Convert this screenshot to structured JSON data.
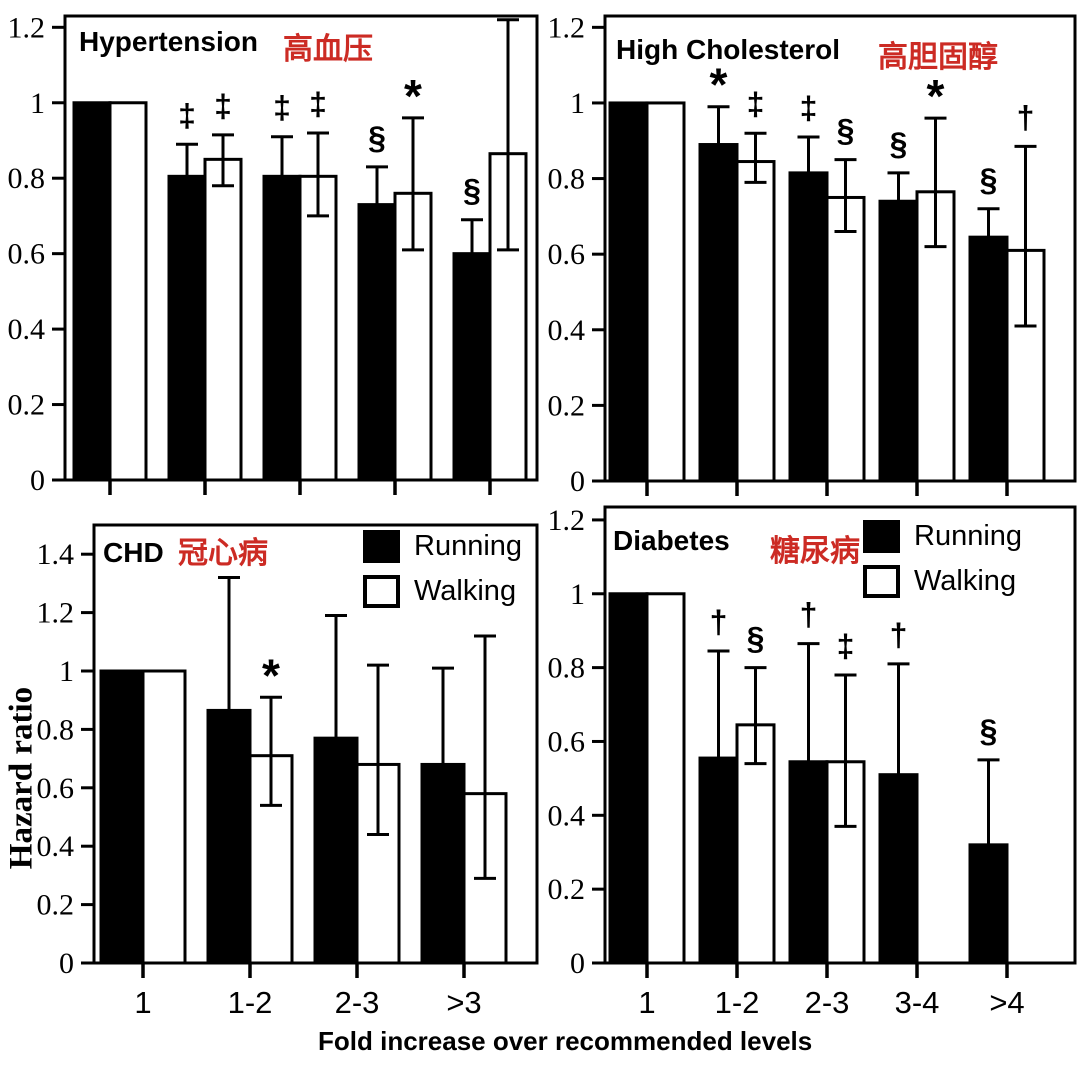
{
  "figure": {
    "y_axis_label": "Hazard ratio",
    "x_axis_label": "Fold increase over recommended levels",
    "colors": {
      "line": "#000000",
      "running_fill": "#000000",
      "walking_fill": "#ffffff",
      "chinese_label_red": "#cc2b24",
      "background": "#ffffff"
    }
  },
  "legend": {
    "running": "Running",
    "walking": "Walking"
  },
  "chart_data": [
    {
      "id": "hypertension",
      "type": "bar",
      "title": "Hypertension",
      "title_zh": "高血压",
      "ylabel": "Hazard ratio",
      "ylim": [
        0,
        1.23
      ],
      "y_ticks": [
        0,
        0.2,
        0.4,
        0.6,
        0.8,
        1.0,
        1.2
      ],
      "y_tick_labels": [
        "0",
        "0.2",
        "0.4",
        "0.6",
        "0.8",
        "1",
        "1.2"
      ],
      "x_tick_labels": [
        null,
        null,
        null,
        null,
        null
      ],
      "grid": false,
      "series": [
        {
          "name": "Running",
          "fill": "black",
          "values": [
            1.0,
            0.805,
            0.805,
            0.73,
            0.6
          ],
          "err_lo": [
            null,
            null,
            null,
            null,
            null
          ],
          "err_hi": [
            null,
            0.89,
            0.91,
            0.83,
            0.69
          ],
          "sym": [
            null,
            "‡",
            "‡",
            "§",
            "§"
          ]
        },
        {
          "name": "Walking",
          "fill": "white",
          "values": [
            1.0,
            0.85,
            0.805,
            0.76,
            0.865
          ],
          "err_lo": [
            null,
            0.78,
            0.7,
            0.61,
            0.61
          ],
          "err_hi": [
            null,
            0.915,
            0.92,
            0.96,
            1.22
          ],
          "sym": [
            null,
            "‡",
            "‡",
            "*",
            null
          ]
        }
      ]
    },
    {
      "id": "high-cholesterol",
      "type": "bar",
      "title": "High Cholesterol",
      "title_zh": "高胆固醇",
      "ylabel": "Hazard ratio",
      "ylim": [
        0,
        1.23
      ],
      "y_ticks": [
        0,
        0.2,
        0.4,
        0.6,
        0.8,
        1.0,
        1.2
      ],
      "y_tick_labels": [
        "0",
        "0.2",
        "0.4",
        "0.6",
        "0.8",
        "1",
        "1.2"
      ],
      "x_tick_labels": [
        null,
        null,
        null,
        null,
        null
      ],
      "grid": false,
      "series": [
        {
          "name": "Running",
          "fill": "black",
          "values": [
            1.0,
            0.89,
            0.815,
            0.74,
            0.645
          ],
          "err_lo": [
            null,
            null,
            null,
            null,
            null
          ],
          "err_hi": [
            null,
            0.99,
            0.91,
            0.815,
            0.72
          ],
          "sym": [
            null,
            "*",
            "‡",
            "§",
            "§"
          ]
        },
        {
          "name": "Walking",
          "fill": "white",
          "values": [
            1.0,
            0.845,
            0.75,
            0.765,
            0.61
          ],
          "err_lo": [
            null,
            0.79,
            0.66,
            0.62,
            0.41
          ],
          "err_hi": [
            null,
            0.92,
            0.85,
            0.96,
            0.885
          ],
          "sym": [
            null,
            "‡",
            "§",
            "*",
            "†"
          ]
        }
      ]
    },
    {
      "id": "chd",
      "type": "bar",
      "title": "CHD",
      "title_zh": "冠心病",
      "ylabel": "Hazard ratio",
      "ylim": [
        0,
        1.5
      ],
      "y_ticks": [
        0,
        0.2,
        0.4,
        0.6,
        0.8,
        1.0,
        1.2,
        1.4
      ],
      "y_tick_labels": [
        "0",
        "0.2",
        "0.4",
        "0.6",
        "0.8",
        "1",
        "1.2",
        "1.4"
      ],
      "x_tick_labels": [
        "1",
        "1-2",
        "2-3",
        ">3"
      ],
      "grid": false,
      "has_legend": true,
      "series": [
        {
          "name": "Running",
          "fill": "black",
          "values": [
            1.0,
            0.865,
            0.77,
            0.68
          ],
          "err_lo": [
            null,
            null,
            null,
            null
          ],
          "err_hi": [
            null,
            1.32,
            1.19,
            1.01
          ],
          "sym": [
            null,
            null,
            null,
            null
          ]
        },
        {
          "name": "Walking",
          "fill": "white",
          "values": [
            1.0,
            0.71,
            0.68,
            0.58
          ],
          "err_lo": [
            null,
            0.54,
            0.44,
            0.29
          ],
          "err_hi": [
            null,
            0.91,
            1.02,
            1.12
          ],
          "sym": [
            null,
            "*",
            null,
            null
          ]
        }
      ]
    },
    {
      "id": "diabetes",
      "type": "bar",
      "title": "Diabetes",
      "title_zh": "糖尿病",
      "ylabel": "Hazard ratio",
      "ylim": [
        0,
        1.235
      ],
      "y_ticks": [
        0,
        0.2,
        0.4,
        0.6,
        0.8,
        1.0,
        1.2
      ],
      "y_tick_labels": [
        "0",
        "0.2",
        "0.4",
        "0.6",
        "0.8",
        "1",
        "1.2"
      ],
      "x_tick_labels": [
        "1",
        "1-2",
        "2-3",
        "3-4",
        ">4"
      ],
      "grid": false,
      "has_legend": true,
      "series": [
        {
          "name": "Running",
          "fill": "black",
          "values": [
            1.0,
            0.555,
            0.545,
            0.51,
            0.32
          ],
          "err_lo": [
            null,
            null,
            null,
            null,
            null
          ],
          "err_hi": [
            null,
            0.845,
            0.865,
            0.81,
            0.55
          ],
          "sym": [
            null,
            "†",
            "†",
            "†",
            "§"
          ]
        },
        {
          "name": "Walking",
          "fill": "white",
          "values": [
            1.0,
            0.645,
            0.545,
            null,
            null
          ],
          "err_lo": [
            null,
            0.54,
            0.37,
            null,
            null
          ],
          "err_hi": [
            null,
            0.8,
            0.78,
            null,
            null
          ],
          "sym": [
            null,
            "§",
            "‡",
            null,
            null
          ]
        }
      ]
    }
  ]
}
